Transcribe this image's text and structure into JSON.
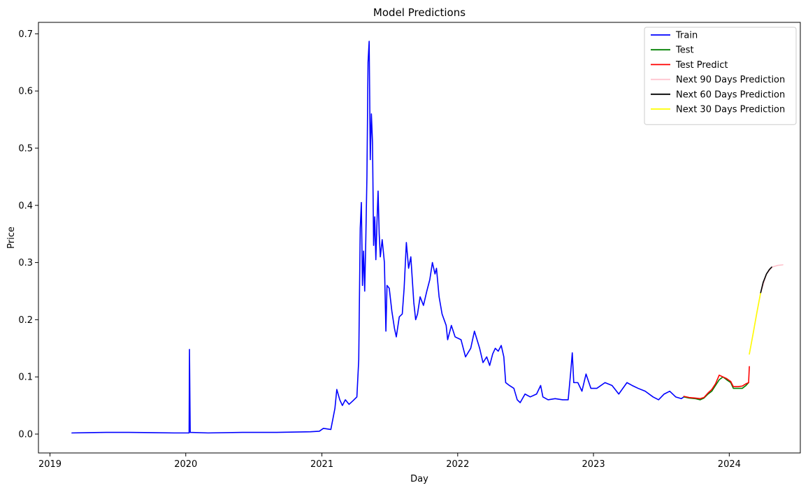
{
  "chart_data": {
    "type": "line",
    "title": "Model Predictions",
    "xlabel": "Day",
    "ylabel": "Price",
    "xlim": [
      "2018-12-01",
      "2024-07-10"
    ],
    "ylim": [
      -0.033,
      0.72
    ],
    "x_ticks": [
      {
        "value": "2019-01-01",
        "label": "2019"
      },
      {
        "value": "2020-01-01",
        "label": "2020"
      },
      {
        "value": "2021-01-01",
        "label": "2021"
      },
      {
        "value": "2022-01-01",
        "label": "2022"
      },
      {
        "value": "2023-01-01",
        "label": "2023"
      },
      {
        "value": "2024-01-01",
        "label": "2024"
      }
    ],
    "y_ticks": [
      {
        "value": 0.0,
        "label": "0.0"
      },
      {
        "value": 0.1,
        "label": "0.1"
      },
      {
        "value": 0.2,
        "label": "0.2"
      },
      {
        "value": 0.3,
        "label": "0.3"
      },
      {
        "value": 0.4,
        "label": "0.4"
      },
      {
        "value": 0.5,
        "label": "0.5"
      },
      {
        "value": 0.6,
        "label": "0.6"
      },
      {
        "value": 0.7,
        "label": "0.7"
      }
    ],
    "grid": false,
    "legend_position": "top-right",
    "series": [
      {
        "name": "Train",
        "color": "#0000ff",
        "points": [
          [
            "2019-03-01",
            0.002
          ],
          [
            "2019-04-15",
            0.0025
          ],
          [
            "2019-06-01",
            0.003
          ],
          [
            "2019-08-01",
            0.003
          ],
          [
            "2019-10-01",
            0.0025
          ],
          [
            "2019-12-01",
            0.002
          ],
          [
            "2020-01-10",
            0.002
          ],
          [
            "2020-01-11",
            0.148
          ],
          [
            "2020-01-13",
            0.003
          ],
          [
            "2020-03-01",
            0.002
          ],
          [
            "2020-06-01",
            0.003
          ],
          [
            "2020-09-01",
            0.003
          ],
          [
            "2020-12-01",
            0.004
          ],
          [
            "2020-12-25",
            0.005
          ],
          [
            "2021-01-05",
            0.01
          ],
          [
            "2021-01-25",
            0.008
          ],
          [
            "2021-02-05",
            0.045
          ],
          [
            "2021-02-10",
            0.078
          ],
          [
            "2021-02-18",
            0.06
          ],
          [
            "2021-02-25",
            0.05
          ],
          [
            "2021-03-05",
            0.06
          ],
          [
            "2021-03-15",
            0.052
          ],
          [
            "2021-03-25",
            0.058
          ],
          [
            "2021-04-05",
            0.065
          ],
          [
            "2021-04-10",
            0.13
          ],
          [
            "2021-04-14",
            0.36
          ],
          [
            "2021-04-17",
            0.405
          ],
          [
            "2021-04-20",
            0.26
          ],
          [
            "2021-04-23",
            0.32
          ],
          [
            "2021-04-26",
            0.25
          ],
          [
            "2021-04-29",
            0.34
          ],
          [
            "2021-05-02",
            0.45
          ],
          [
            "2021-05-05",
            0.65
          ],
          [
            "2021-05-08",
            0.687
          ],
          [
            "2021-05-11",
            0.48
          ],
          [
            "2021-05-14",
            0.56
          ],
          [
            "2021-05-17",
            0.51
          ],
          [
            "2021-05-20",
            0.33
          ],
          [
            "2021-05-23",
            0.38
          ],
          [
            "2021-05-26",
            0.305
          ],
          [
            "2021-05-29",
            0.37
          ],
          [
            "2021-06-01",
            0.425
          ],
          [
            "2021-06-04",
            0.35
          ],
          [
            "2021-06-07",
            0.31
          ],
          [
            "2021-06-12",
            0.34
          ],
          [
            "2021-06-18",
            0.3
          ],
          [
            "2021-06-22",
            0.18
          ],
          [
            "2021-06-25",
            0.26
          ],
          [
            "2021-07-01",
            0.255
          ],
          [
            "2021-07-08",
            0.215
          ],
          [
            "2021-07-15",
            0.185
          ],
          [
            "2021-07-20",
            0.17
          ],
          [
            "2021-07-28",
            0.205
          ],
          [
            "2021-08-05",
            0.21
          ],
          [
            "2021-08-10",
            0.255
          ],
          [
            "2021-08-16",
            0.335
          ],
          [
            "2021-08-22",
            0.29
          ],
          [
            "2021-08-28",
            0.31
          ],
          [
            "2021-09-05",
            0.23
          ],
          [
            "2021-09-10",
            0.2
          ],
          [
            "2021-09-15",
            0.21
          ],
          [
            "2021-09-22",
            0.24
          ],
          [
            "2021-10-01",
            0.225
          ],
          [
            "2021-10-10",
            0.25
          ],
          [
            "2021-10-18",
            0.27
          ],
          [
            "2021-10-25",
            0.3
          ],
          [
            "2021-11-01",
            0.28
          ],
          [
            "2021-11-05",
            0.29
          ],
          [
            "2021-11-12",
            0.24
          ],
          [
            "2021-11-20",
            0.21
          ],
          [
            "2021-12-01",
            0.19
          ],
          [
            "2021-12-05",
            0.165
          ],
          [
            "2021-12-15",
            0.19
          ],
          [
            "2021-12-25",
            0.17
          ],
          [
            "2022-01-10",
            0.165
          ],
          [
            "2022-01-22",
            0.135
          ],
          [
            "2022-02-05",
            0.15
          ],
          [
            "2022-02-15",
            0.18
          ],
          [
            "2022-03-01",
            0.15
          ],
          [
            "2022-03-10",
            0.125
          ],
          [
            "2022-03-20",
            0.135
          ],
          [
            "2022-03-28",
            0.12
          ],
          [
            "2022-04-05",
            0.14
          ],
          [
            "2022-04-12",
            0.15
          ],
          [
            "2022-04-20",
            0.145
          ],
          [
            "2022-04-28",
            0.155
          ],
          [
            "2022-05-05",
            0.135
          ],
          [
            "2022-05-10",
            0.09
          ],
          [
            "2022-05-20",
            0.085
          ],
          [
            "2022-06-01",
            0.08
          ],
          [
            "2022-06-10",
            0.06
          ],
          [
            "2022-06-18",
            0.055
          ],
          [
            "2022-07-01",
            0.07
          ],
          [
            "2022-07-15",
            0.065
          ],
          [
            "2022-08-01",
            0.07
          ],
          [
            "2022-08-12",
            0.085
          ],
          [
            "2022-08-18",
            0.065
          ],
          [
            "2022-09-01",
            0.06
          ],
          [
            "2022-09-20",
            0.062
          ],
          [
            "2022-10-10",
            0.06
          ],
          [
            "2022-10-25",
            0.06
          ],
          [
            "2022-11-01",
            0.11
          ],
          [
            "2022-11-05",
            0.142
          ],
          [
            "2022-11-09",
            0.09
          ],
          [
            "2022-11-20",
            0.09
          ],
          [
            "2022-12-01",
            0.075
          ],
          [
            "2022-12-12",
            0.105
          ],
          [
            "2022-12-25",
            0.08
          ],
          [
            "2023-01-10",
            0.08
          ],
          [
            "2023-02-01",
            0.09
          ],
          [
            "2023-02-20",
            0.085
          ],
          [
            "2023-03-10",
            0.07
          ],
          [
            "2023-04-01",
            0.09
          ],
          [
            "2023-04-15",
            0.085
          ],
          [
            "2023-05-01",
            0.08
          ],
          [
            "2023-05-20",
            0.075
          ],
          [
            "2023-06-10",
            0.065
          ],
          [
            "2023-06-25",
            0.06
          ],
          [
            "2023-07-10",
            0.07
          ],
          [
            "2023-07-25",
            0.075
          ],
          [
            "2023-08-10",
            0.065
          ],
          [
            "2023-08-25",
            0.062
          ],
          [
            "2023-09-01",
            0.065
          ]
        ]
      },
      {
        "name": "Test",
        "color": "#008000",
        "points": [
          [
            "2023-09-01",
            0.065
          ],
          [
            "2023-09-15",
            0.063
          ],
          [
            "2023-10-01",
            0.062
          ],
          [
            "2023-10-15",
            0.06
          ],
          [
            "2023-10-25",
            0.063
          ],
          [
            "2023-11-05",
            0.07
          ],
          [
            "2023-11-15",
            0.075
          ],
          [
            "2023-11-25",
            0.085
          ],
          [
            "2023-12-05",
            0.095
          ],
          [
            "2023-12-15",
            0.1
          ],
          [
            "2023-12-25",
            0.095
          ],
          [
            "2024-01-05",
            0.09
          ],
          [
            "2024-01-12",
            0.08
          ],
          [
            "2024-01-25",
            0.08
          ],
          [
            "2024-02-05",
            0.08
          ],
          [
            "2024-02-15",
            0.085
          ],
          [
            "2024-02-22",
            0.09
          ]
        ]
      },
      {
        "name": "Test Predict",
        "color": "#ff0000",
        "points": [
          [
            "2023-09-01",
            0.066
          ],
          [
            "2023-09-15",
            0.064
          ],
          [
            "2023-10-01",
            0.063
          ],
          [
            "2023-10-15",
            0.062
          ],
          [
            "2023-10-25",
            0.064
          ],
          [
            "2023-11-05",
            0.072
          ],
          [
            "2023-11-15",
            0.078
          ],
          [
            "2023-11-25",
            0.088
          ],
          [
            "2023-12-05",
            0.103
          ],
          [
            "2023-12-15",
            0.1
          ],
          [
            "2023-12-25",
            0.097
          ],
          [
            "2024-01-05",
            0.092
          ],
          [
            "2024-01-12",
            0.083
          ],
          [
            "2024-01-25",
            0.083
          ],
          [
            "2024-02-05",
            0.084
          ],
          [
            "2024-02-15",
            0.088
          ],
          [
            "2024-02-22",
            0.09
          ],
          [
            "2024-02-24",
            0.118
          ]
        ]
      },
      {
        "name": "Next 90 Days Prediction",
        "color": "#ffc0cb",
        "points": [
          [
            "2024-02-24",
            0.14
          ],
          [
            "2024-03-25",
            0.246
          ],
          [
            "2024-04-10",
            0.28
          ],
          [
            "2024-04-25",
            0.292
          ],
          [
            "2024-05-10",
            0.295
          ],
          [
            "2024-05-24",
            0.296
          ]
        ]
      },
      {
        "name": "Next 60 Days Prediction",
        "color": "#000000",
        "points": [
          [
            "2024-03-25",
            0.246
          ],
          [
            "2024-04-01",
            0.265
          ],
          [
            "2024-04-10",
            0.28
          ],
          [
            "2024-04-18",
            0.288
          ],
          [
            "2024-04-24",
            0.292
          ]
        ]
      },
      {
        "name": "Next 30 Days Prediction",
        "color": "#ffff00",
        "points": [
          [
            "2024-02-24",
            0.14
          ],
          [
            "2024-03-05",
            0.175
          ],
          [
            "2024-03-15",
            0.212
          ],
          [
            "2024-03-25",
            0.246
          ]
        ]
      }
    ]
  }
}
